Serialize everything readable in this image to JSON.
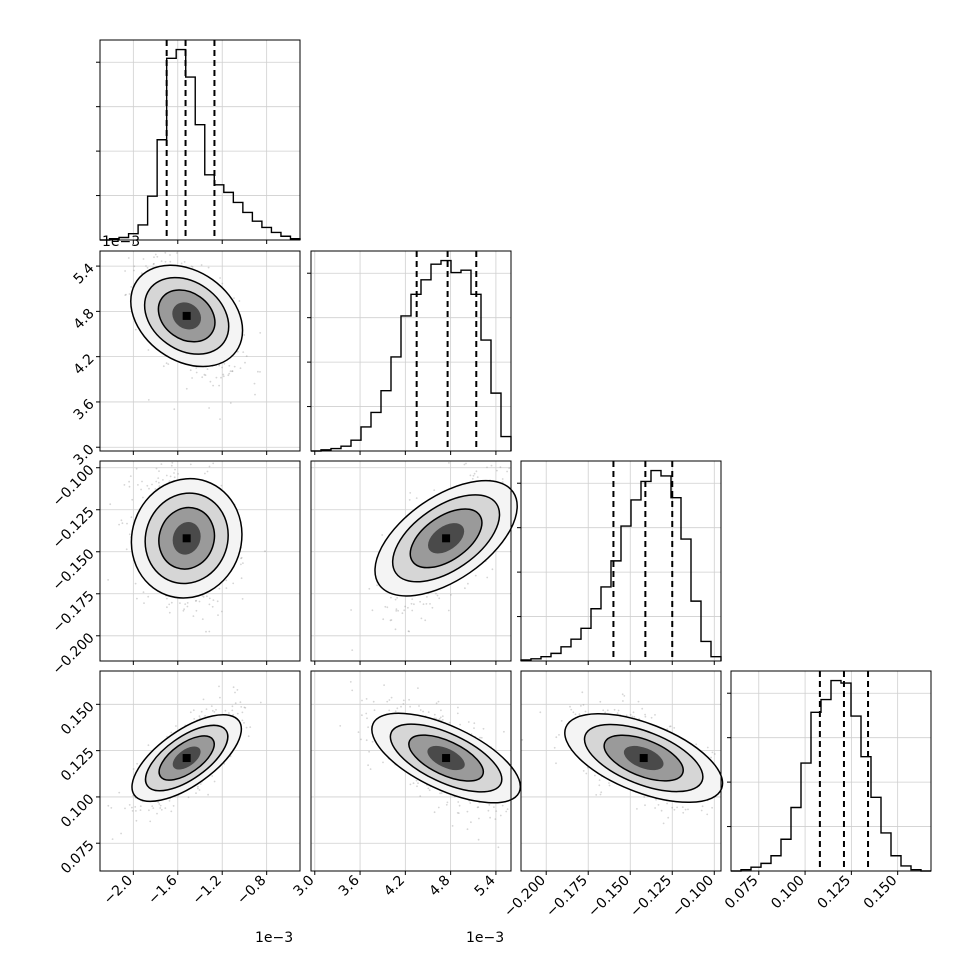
{
  "chart_data": {
    "type": "corner",
    "parameters": [
      {
        "range": [
          -2.3,
          -0.5
        ],
        "ticks": [
          "-2.0",
          "-1.6",
          "-1.2",
          "-0.8"
        ],
        "tick_values": [
          -2.0,
          -1.6,
          -1.2,
          -0.8
        ],
        "offset_label": "1e−3"
      },
      {
        "range": [
          2.95,
          5.6
        ],
        "ticks": [
          "3.0",
          "3.6",
          "4.2",
          "4.8",
          "5.4"
        ],
        "tick_values": [
          3.0,
          3.6,
          4.2,
          4.8,
          5.4
        ],
        "offset_label": "1e−3"
      },
      {
        "range": [
          -0.215,
          -0.096
        ],
        "ticks": [
          "-0.200",
          "-0.175",
          "-0.150",
          "-0.125",
          "-0.100"
        ],
        "tick_values": [
          -0.2,
          -0.175,
          -0.15,
          -0.125,
          -0.1
        ],
        "offset_label": ""
      },
      {
        "range": [
          0.06,
          0.168
        ],
        "ticks": [
          "0.075",
          "0.100",
          "0.125",
          "0.150"
        ],
        "tick_values": [
          0.075,
          0.1,
          0.125,
          0.15
        ],
        "offset_label": ""
      }
    ],
    "quantiles": [
      [
        -1.7,
        -1.53,
        -1.27
      ],
      [
        4.35,
        4.76,
        5.14
      ],
      [
        -0.16,
        -0.141,
        -0.125
      ],
      [
        0.108,
        0.121,
        0.134
      ]
    ],
    "histograms": [
      {
        "counts": [
          0,
          1,
          2,
          5,
          12,
          35,
          80,
          145,
          152,
          130,
          92,
          52,
          44,
          38,
          30,
          22,
          15,
          10,
          6,
          3,
          1
        ]
      },
      {
        "counts": [
          0,
          1,
          2,
          4,
          9,
          20,
          32,
          50,
          78,
          112,
          130,
          142,
          155,
          158,
          148,
          150,
          130,
          92,
          48,
          12
        ]
      },
      {
        "counts": [
          1,
          2,
          4,
          7,
          13,
          20,
          30,
          48,
          68,
          92,
          124,
          148,
          165,
          175,
          170,
          150,
          112,
          55,
          18,
          4
        ]
      },
      {
        "counts": [
          0,
          1,
          3,
          6,
          12,
          25,
          50,
          85,
          125,
          135,
          150,
          148,
          122,
          90,
          58,
          30,
          12,
          4,
          1,
          0
        ]
      }
    ],
    "ylim_top_ticks": 4,
    "grid": true,
    "scatter_color": "#888888",
    "hist_color": "#000000",
    "xlabel": "",
    "ylabel": ""
  }
}
